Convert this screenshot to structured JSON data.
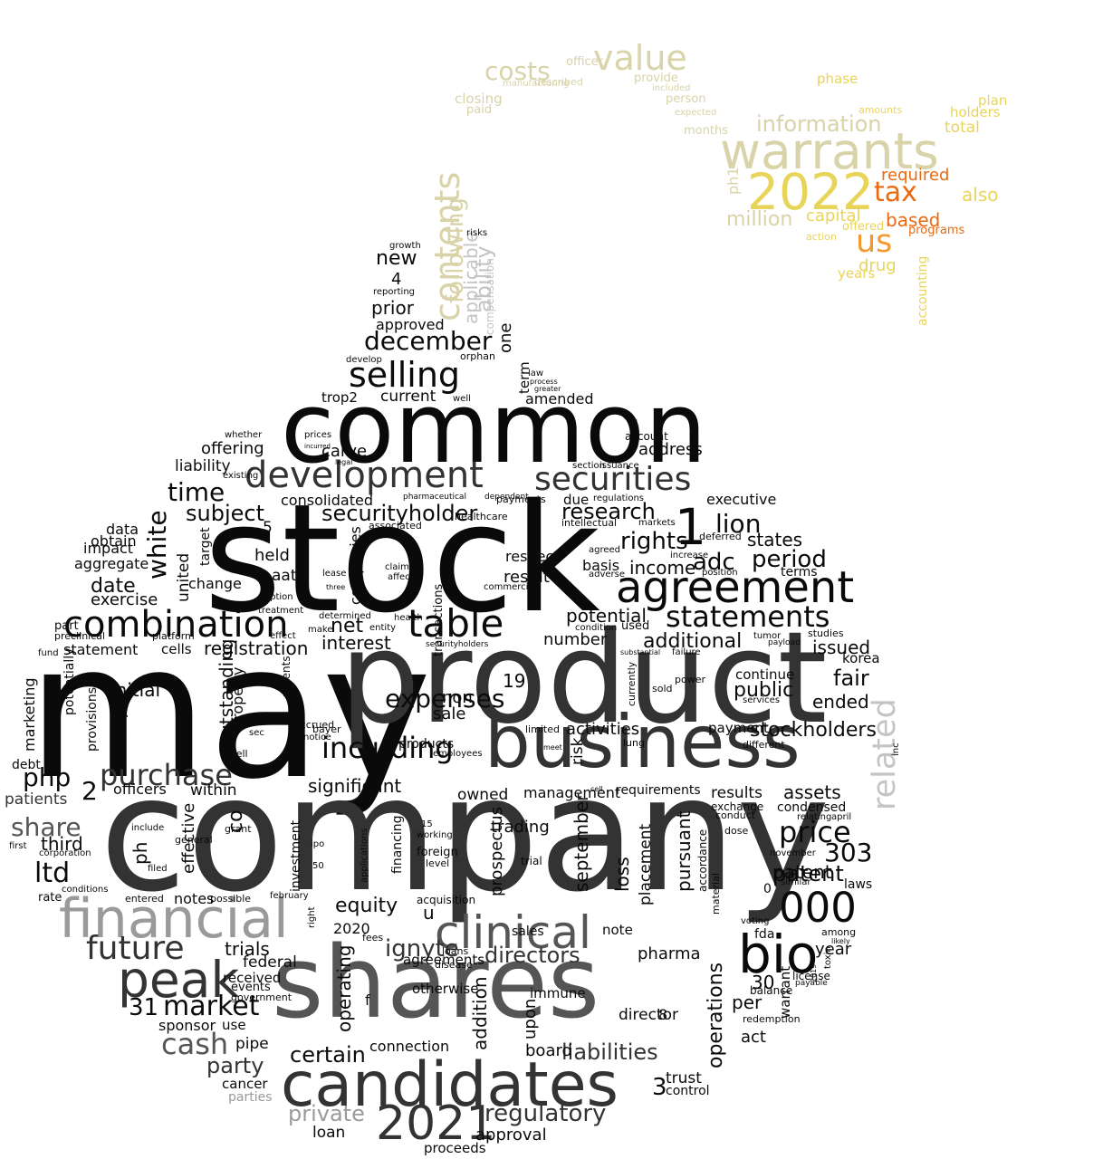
{
  "colors": {
    "black": "#0a0a0a",
    "dark_gray": "#333333",
    "mid_gray": "#555555",
    "gray": "#9a9a9a",
    "light_gray": "#c4c4c4",
    "khaki": "#d8d3a8",
    "gold": "#e9d45a",
    "yellow": "#f4e54a",
    "orange": "#e96a10",
    "orange_light": "#f29a2e"
  },
  "words": [
    {
      "text": "may"
    },
    {
      "text": "company"
    },
    {
      "text": "stock"
    },
    {
      "text": "product"
    },
    {
      "text": "common"
    },
    {
      "text": "shares"
    },
    {
      "text": "candidates"
    },
    {
      "text": "business"
    },
    {
      "text": "financial"
    },
    {
      "text": "agreement"
    },
    {
      "text": "development"
    },
    {
      "text": "combination"
    },
    {
      "text": "bio"
    },
    {
      "text": "clinical"
    },
    {
      "text": "peak"
    },
    {
      "text": "2021"
    },
    {
      "text": "table"
    },
    {
      "text": "1"
    },
    {
      "text": "securities"
    },
    {
      "text": "selling"
    },
    {
      "text": "warrants"
    },
    {
      "text": "2022"
    },
    {
      "text": "000"
    },
    {
      "text": "value"
    },
    {
      "text": "contents"
    },
    {
      "text": "related"
    },
    {
      "text": "future"
    },
    {
      "text": "purchase"
    },
    {
      "text": "statements"
    },
    {
      "text": "including"
    },
    {
      "text": "lion"
    },
    {
      "text": "price"
    },
    {
      "text": "cash"
    },
    {
      "text": "market"
    },
    {
      "text": "time"
    },
    {
      "text": "expenses"
    },
    {
      "text": "december"
    },
    {
      "text": "us"
    },
    {
      "text": "tax"
    },
    {
      "text": "costs"
    },
    {
      "text": "information"
    },
    {
      "text": "303"
    },
    {
      "text": "white"
    },
    {
      "text": "share"
    },
    {
      "text": "php"
    },
    {
      "text": "ltd"
    },
    {
      "text": "party"
    },
    {
      "text": "private"
    },
    {
      "text": "certain"
    },
    {
      "text": "regulatory"
    },
    {
      "text": "liabilities"
    },
    {
      "text": "ignyte"
    },
    {
      "text": "directors"
    },
    {
      "text": "period"
    },
    {
      "text": "adc"
    },
    {
      "text": "rights"
    },
    {
      "text": "research"
    },
    {
      "text": "securityholder"
    },
    {
      "text": "subject"
    },
    {
      "text": "date"
    },
    {
      "text": "net"
    },
    {
      "text": "interest"
    },
    {
      "text": "registration"
    },
    {
      "text": "additional"
    },
    {
      "text": "income"
    },
    {
      "text": "states"
    },
    {
      "text": "fair"
    },
    {
      "text": "public"
    },
    {
      "text": "stockholders"
    },
    {
      "text": "patent"
    },
    {
      "text": "ended"
    },
    {
      "text": "issued"
    },
    {
      "text": "following"
    },
    {
      "text": "applicable"
    },
    {
      "text": "ability"
    },
    {
      "text": "new"
    },
    {
      "text": "prior"
    },
    {
      "text": "approved"
    },
    {
      "text": "4"
    },
    {
      "text": "one"
    },
    {
      "text": "term"
    },
    {
      "text": "current"
    },
    {
      "text": "amended"
    },
    {
      "text": "carve"
    },
    {
      "text": "offering"
    },
    {
      "text": "liability"
    },
    {
      "text": "consolidated"
    },
    {
      "text": "held"
    },
    {
      "text": "aatd"
    },
    {
      "text": "companies"
    },
    {
      "text": "respect"
    },
    {
      "text": "result"
    },
    {
      "text": "basis"
    },
    {
      "text": "potential"
    },
    {
      "text": "number"
    },
    {
      "text": "trop2"
    },
    {
      "text": "address"
    },
    {
      "text": "executive"
    },
    {
      "text": "terms"
    },
    {
      "text": "data"
    },
    {
      "text": "obtain"
    },
    {
      "text": "impact"
    },
    {
      "text": "aggregate"
    },
    {
      "text": "exercise"
    },
    {
      "text": "united"
    },
    {
      "text": "change"
    },
    {
      "text": "5"
    },
    {
      "text": "statement"
    },
    {
      "text": "cells"
    },
    {
      "text": "initial"
    },
    {
      "text": "outstanding"
    },
    {
      "text": "property"
    },
    {
      "text": "sale"
    },
    {
      "text": "non"
    },
    {
      "text": "19"
    },
    {
      "text": "activities"
    },
    {
      "text": "payment"
    },
    {
      "text": "continue"
    },
    {
      "text": "korea"
    },
    {
      "text": "2"
    },
    {
      "text": "patients"
    },
    {
      "text": "third"
    },
    {
      "text": "officers"
    },
    {
      "text": "within"
    },
    {
      "text": "effective"
    },
    {
      "text": "ph"
    },
    {
      "text": "co"
    },
    {
      "text": "significant"
    },
    {
      "text": "products"
    },
    {
      "text": "owned"
    },
    {
      "text": "management"
    },
    {
      "text": "risk"
    },
    {
      "text": "september"
    },
    {
      "text": "loss"
    },
    {
      "text": "placement"
    },
    {
      "text": "pursuant"
    },
    {
      "text": "results"
    },
    {
      "text": "assets"
    },
    {
      "text": "requirements"
    },
    {
      "text": "condensed"
    },
    {
      "text": "patent"
    },
    {
      "text": "laws"
    },
    {
      "text": "year"
    },
    {
      "text": "fda"
    },
    {
      "text": "0"
    },
    {
      "text": "notes"
    },
    {
      "text": "2020"
    },
    {
      "text": "equity"
    },
    {
      "text": "u"
    },
    {
      "text": "prospectus"
    },
    {
      "text": "trading"
    },
    {
      "text": "trial"
    },
    {
      "text": "note"
    },
    {
      "text": "sales"
    },
    {
      "text": "pharma"
    },
    {
      "text": "operations"
    },
    {
      "text": "30"
    },
    {
      "text": "per"
    },
    {
      "text": "act"
    },
    {
      "text": "warrant"
    },
    {
      "text": "agreements"
    },
    {
      "text": "trials"
    },
    {
      "text": "federal"
    },
    {
      "text": "received"
    },
    {
      "text": "events"
    },
    {
      "text": "government"
    },
    {
      "text": "sponsor"
    },
    {
      "text": "use"
    },
    {
      "text": "pipe"
    },
    {
      "text": "31"
    },
    {
      "text": "cancer"
    },
    {
      "text": "parties"
    },
    {
      "text": "operating"
    },
    {
      "text": "f"
    },
    {
      "text": "connection"
    },
    {
      "text": "addition"
    },
    {
      "text": "upon"
    },
    {
      "text": "board"
    },
    {
      "text": "director"
    },
    {
      "text": "8"
    },
    {
      "text": "trust"
    },
    {
      "text": "control"
    },
    {
      "text": "3"
    },
    {
      "text": "approval"
    },
    {
      "text": "proceeds"
    },
    {
      "text": "loan"
    },
    {
      "text": "immune"
    },
    {
      "text": "otherwise"
    },
    {
      "text": "required"
    },
    {
      "text": "based"
    },
    {
      "text": "also"
    },
    {
      "text": "capital"
    },
    {
      "text": "million"
    },
    {
      "text": "ph1"
    },
    {
      "text": "drug"
    },
    {
      "text": "years"
    },
    {
      "text": "phase"
    },
    {
      "text": "holders"
    },
    {
      "text": "plan"
    },
    {
      "text": "total"
    },
    {
      "text": "amounts"
    },
    {
      "text": "accounting"
    },
    {
      "text": "programs"
    },
    {
      "text": "offered"
    },
    {
      "text": "action"
    },
    {
      "text": "months"
    },
    {
      "text": "person"
    },
    {
      "text": "provide"
    },
    {
      "text": "included"
    },
    {
      "text": "expected"
    },
    {
      "text": "closing"
    },
    {
      "text": "paid"
    },
    {
      "text": "described"
    },
    {
      "text": "manufacturing"
    },
    {
      "text": "officer"
    },
    {
      "text": "compensation"
    },
    {
      "text": "reporting"
    },
    {
      "text": "growth"
    },
    {
      "text": "risks"
    },
    {
      "text": "orphan"
    },
    {
      "text": "develop"
    },
    {
      "text": "healthcare"
    },
    {
      "text": "associated"
    },
    {
      "text": "pharmaceutical"
    },
    {
      "text": "dependent"
    },
    {
      "text": "payments"
    },
    {
      "text": "due"
    },
    {
      "text": "regulations"
    },
    {
      "text": "intellectual"
    },
    {
      "text": "markets"
    },
    {
      "text": "agreed"
    },
    {
      "text": "adverse"
    },
    {
      "text": "deferred"
    },
    {
      "text": "increase"
    },
    {
      "text": "position"
    },
    {
      "text": "account"
    },
    {
      "text": "dr"
    },
    {
      "text": "section"
    },
    {
      "text": "issuance"
    },
    {
      "text": "well"
    },
    {
      "text": "law"
    },
    {
      "text": "process"
    },
    {
      "text": "greater"
    },
    {
      "text": "whether"
    },
    {
      "text": "prices"
    },
    {
      "text": "existing"
    },
    {
      "text": "legal"
    },
    {
      "text": "incurred"
    },
    {
      "text": "claims"
    },
    {
      "text": "affect"
    },
    {
      "text": "lease"
    },
    {
      "text": "three"
    },
    {
      "text": "option"
    },
    {
      "text": "treatment"
    },
    {
      "text": "determined"
    },
    {
      "text": "health"
    },
    {
      "text": "entity"
    },
    {
      "text": "make"
    },
    {
      "text": "condition"
    },
    {
      "text": "used"
    },
    {
      "text": "transactions"
    },
    {
      "text": "commercial"
    },
    {
      "text": "target"
    },
    {
      "text": "part"
    },
    {
      "text": "preclinical"
    },
    {
      "text": "platform"
    },
    {
      "text": "fund"
    },
    {
      "text": "marketing"
    },
    {
      "text": "provisions"
    },
    {
      "text": "potentially"
    },
    {
      "text": "adversely"
    },
    {
      "text": "debt"
    },
    {
      "text": "rate"
    },
    {
      "text": "conditions"
    },
    {
      "text": "entered"
    },
    {
      "text": "possible"
    },
    {
      "text": "general"
    },
    {
      "text": "include"
    },
    {
      "text": "filed"
    },
    {
      "text": "first"
    },
    {
      "text": "corporation"
    },
    {
      "text": "grant"
    },
    {
      "text": "investment"
    },
    {
      "text": "ipo"
    },
    {
      "text": "50"
    },
    {
      "text": "february"
    },
    {
      "text": "right"
    },
    {
      "text": "fees"
    },
    {
      "text": "loans"
    },
    {
      "text": "disease"
    },
    {
      "text": "financing"
    },
    {
      "text": "working"
    },
    {
      "text": "foreign"
    },
    {
      "text": "level"
    },
    {
      "text": "15"
    },
    {
      "text": "acquisition"
    },
    {
      "text": "applications"
    },
    {
      "text": "employees"
    },
    {
      "text": "limited"
    },
    {
      "text": "meet"
    },
    {
      "text": "lung"
    },
    {
      "text": "cell"
    },
    {
      "text": "currently"
    },
    {
      "text": "power"
    },
    {
      "text": "sold"
    },
    {
      "text": "substantial"
    },
    {
      "text": "failure"
    },
    {
      "text": "services"
    },
    {
      "text": "different"
    },
    {
      "text": "exchange"
    },
    {
      "text": "conduct"
    },
    {
      "text": "dose"
    },
    {
      "text": "november"
    },
    {
      "text": "similar"
    },
    {
      "text": "accordance"
    },
    {
      "text": "material"
    },
    {
      "text": "voting"
    },
    {
      "text": "among"
    },
    {
      "text": "license"
    },
    {
      "text": "balance"
    },
    {
      "text": "redemption"
    },
    {
      "text": "studies"
    },
    {
      "text": "payload"
    },
    {
      "text": "tumor"
    },
    {
      "text": "securityholders"
    },
    {
      "text": "accrued"
    },
    {
      "text": "notice"
    },
    {
      "text": "effect"
    },
    {
      "text": "sell"
    },
    {
      "text": "sec"
    },
    {
      "text": "patents"
    },
    {
      "text": "bayer"
    },
    {
      "text": "relating"
    },
    {
      "text": "april"
    },
    {
      "text": "inc"
    },
    {
      "text": "toxin"
    },
    {
      "text": "2019"
    },
    {
      "text": "likely"
    },
    {
      "text": "payable"
    }
  ]
}
